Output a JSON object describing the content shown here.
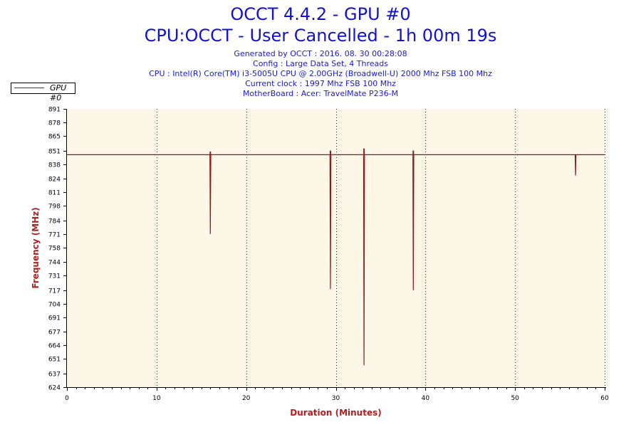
{
  "header": {
    "title_line1": "OCCT 4.4.2 - GPU #0",
    "title_line2": "CPU:OCCT - User Cancelled - 1h 00m 19s",
    "info_lines": [
      "Generated by OCCT : 2016. 08. 30 00:28:08",
      "Config : Large Data Set, 4 Threads",
      "CPU : Intel(R) Core(TM) i3-5005U CPU @ 2.00GHz (Broadwell-U) 2000 Mhz FSB 100 Mhz",
      "Current clock : 1997 Mhz FSB 100 Mhz",
      "MotherBoard : Acer: TravelMate P236-M"
    ]
  },
  "legend": {
    "label": "GPU #0"
  },
  "colors": {
    "series": "#8b1a1a",
    "plot_background": "#fdf7e8",
    "title": "#1212cc",
    "axis_title": "#b02020"
  },
  "chart_data": {
    "type": "line",
    "title": "OCCT 4.4.2 - GPU #0",
    "xlabel": "Duration (Minutes)",
    "ylabel": "Frequency (MHz)",
    "xlim": [
      0,
      60
    ],
    "ylim": [
      624,
      891
    ],
    "x_ticks": [
      0,
      10,
      20,
      30,
      40,
      50,
      60
    ],
    "y_ticks": [
      624,
      637,
      651,
      664,
      677,
      691,
      704,
      717,
      731,
      744,
      758,
      771,
      784,
      798,
      811,
      824,
      838,
      851,
      865,
      878,
      891
    ],
    "grid": "vertical dotted",
    "legend_position": "top-left",
    "series": [
      {
        "name": "GPU #0",
        "baseline": 847,
        "x": [
          0,
          15.95,
          16.0,
          16.05,
          29.35,
          29.4,
          29.45,
          33.1,
          33.15,
          33.2,
          38.6,
          38.65,
          38.7,
          56.7,
          56.75,
          56.8,
          60.3
        ],
        "y": [
          847,
          847,
          771,
          847,
          847,
          718,
          847,
          847,
          645,
          847,
          847,
          717,
          847,
          847,
          827,
          847,
          847
        ]
      }
    ],
    "spikes_up": [
      {
        "x": 16.0,
        "y": 850
      },
      {
        "x": 29.4,
        "y": 851
      },
      {
        "x": 33.15,
        "y": 853
      },
      {
        "x": 38.65,
        "y": 851
      }
    ]
  }
}
